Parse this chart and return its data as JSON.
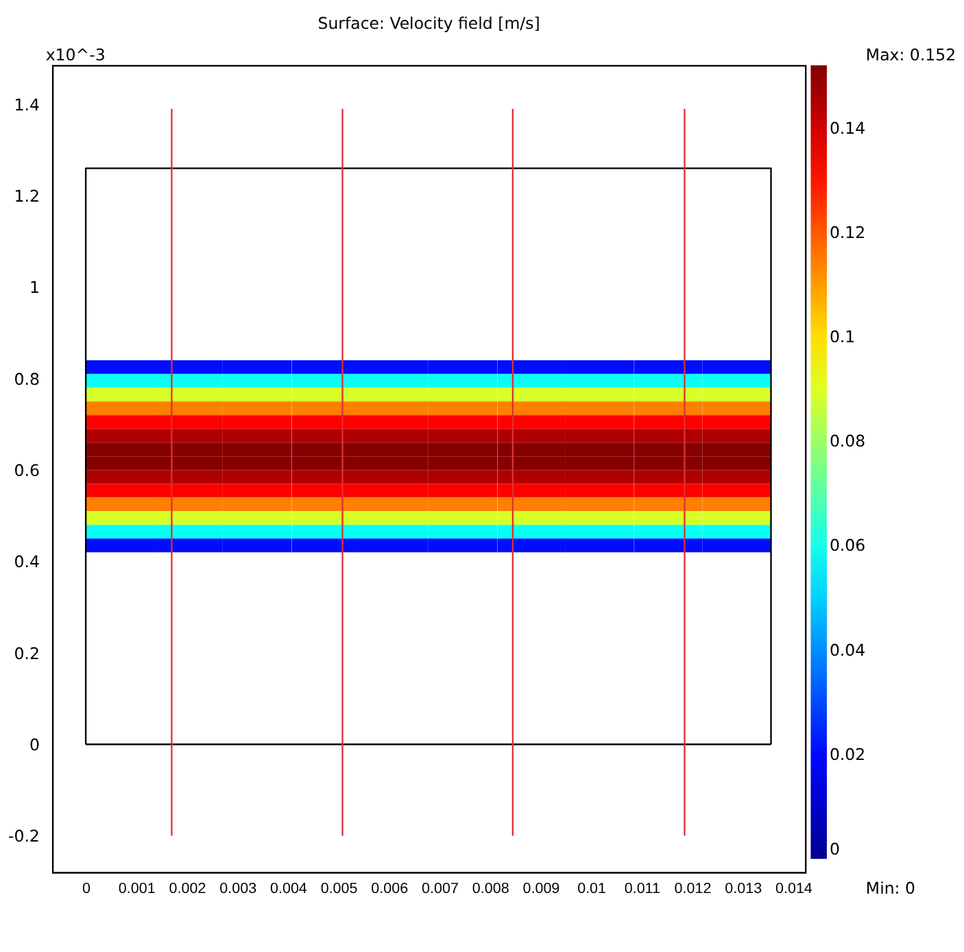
{
  "chart_data": {
    "type": "heatmap",
    "title": "Surface: Velocity field [m/s]",
    "x": [
      0.00068,
      0.00203,
      0.00339,
      0.00475,
      0.0061,
      0.00746,
      0.00882,
      0.01017,
      0.01153,
      0.01288
    ],
    "y": [
      0.825,
      0.795,
      0.765,
      0.735,
      0.705,
      0.675,
      0.645,
      0.615,
      0.585,
      0.555,
      0.525,
      0.495,
      0.465,
      0.435
    ],
    "cells": [
      [
        0.021,
        0.021,
        0.021,
        0.021,
        0.021,
        0.021,
        0.021,
        0.021,
        0.021,
        0.021
      ],
      [
        0.058,
        0.058,
        0.058,
        0.058,
        0.058,
        0.058,
        0.058,
        0.058,
        0.058,
        0.058
      ],
      [
        0.089,
        0.089,
        0.089,
        0.089,
        0.089,
        0.089,
        0.089,
        0.089,
        0.089,
        0.089
      ],
      [
        0.114,
        0.114,
        0.114,
        0.114,
        0.114,
        0.114,
        0.114,
        0.114,
        0.114,
        0.114
      ],
      [
        0.133,
        0.133,
        0.133,
        0.133,
        0.133,
        0.133,
        0.133,
        0.133,
        0.133,
        0.133
      ],
      [
        0.145,
        0.145,
        0.145,
        0.145,
        0.145,
        0.145,
        0.145,
        0.145,
        0.145,
        0.145
      ],
      [
        0.151,
        0.151,
        0.151,
        0.151,
        0.151,
        0.151,
        0.151,
        0.151,
        0.151,
        0.151
      ],
      [
        0.151,
        0.151,
        0.151,
        0.151,
        0.151,
        0.151,
        0.151,
        0.151,
        0.151,
        0.151
      ],
      [
        0.145,
        0.145,
        0.145,
        0.145,
        0.145,
        0.145,
        0.145,
        0.145,
        0.145,
        0.145
      ],
      [
        0.133,
        0.133,
        0.133,
        0.133,
        0.133,
        0.133,
        0.133,
        0.133,
        0.133,
        0.133
      ],
      [
        0.114,
        0.114,
        0.114,
        0.114,
        0.114,
        0.114,
        0.114,
        0.114,
        0.114,
        0.114
      ],
      [
        0.089,
        0.089,
        0.089,
        0.089,
        0.089,
        0.089,
        0.089,
        0.089,
        0.089,
        0.089
      ],
      [
        0.058,
        0.058,
        0.058,
        0.058,
        0.058,
        0.058,
        0.058,
        0.058,
        0.058,
        0.058
      ],
      [
        0.021,
        0.021,
        0.021,
        0.021,
        0.021,
        0.021,
        0.021,
        0.021,
        0.021,
        0.021
      ]
    ],
    "clim": [
      0,
      0.152
    ],
    "cticks": [
      0,
      0.02,
      0.04,
      0.06,
      0.08,
      0.1,
      0.12,
      0.14
    ],
    "xlim": [
      -0.00066,
      0.01424
    ],
    "xticks": [
      0,
      0.001,
      0.002,
      0.003,
      0.004,
      0.005,
      0.006,
      0.007,
      0.008,
      0.009,
      0.01,
      0.011,
      0.012,
      0.013,
      0.014
    ],
    "ylim": [
      -0.28,
      1.485
    ],
    "yticks": [
      -0.2,
      0,
      0.2,
      0.4,
      0.6,
      0.8,
      1,
      1.2,
      1.4
    ],
    "series": [
      {
        "type": "line",
        "color": "#000000",
        "x": [
          0,
          0,
          0.01356,
          0.01356
        ],
        "values": [
          0,
          1.26,
          1.26,
          0
        ]
      },
      {
        "type": "line",
        "color": "#000000",
        "x": [
          0,
          0.01356
        ],
        "values": [
          0,
          0
        ]
      },
      {
        "type": "line",
        "color": "#e03030",
        "x": [
          0.0017,
          0.0017
        ],
        "values": [
          -0.2,
          1.39
        ]
      },
      {
        "type": "line",
        "color": "#e03030",
        "x": [
          0.00508,
          0.00508
        ],
        "values": [
          -0.2,
          1.39
        ]
      },
      {
        "type": "line",
        "color": "#e03030",
        "x": [
          0.00845,
          0.00845
        ],
        "values": [
          -0.2,
          1.39
        ]
      },
      {
        "type": "line",
        "color": "#e03030",
        "x": [
          0.01185,
          0.01185
        ],
        "values": [
          -0.2,
          1.39
        ]
      }
    ],
    "annotations": [
      "x10^-3",
      "Max: 0.152",
      "Min: 0"
    ],
    "grid": false
  }
}
